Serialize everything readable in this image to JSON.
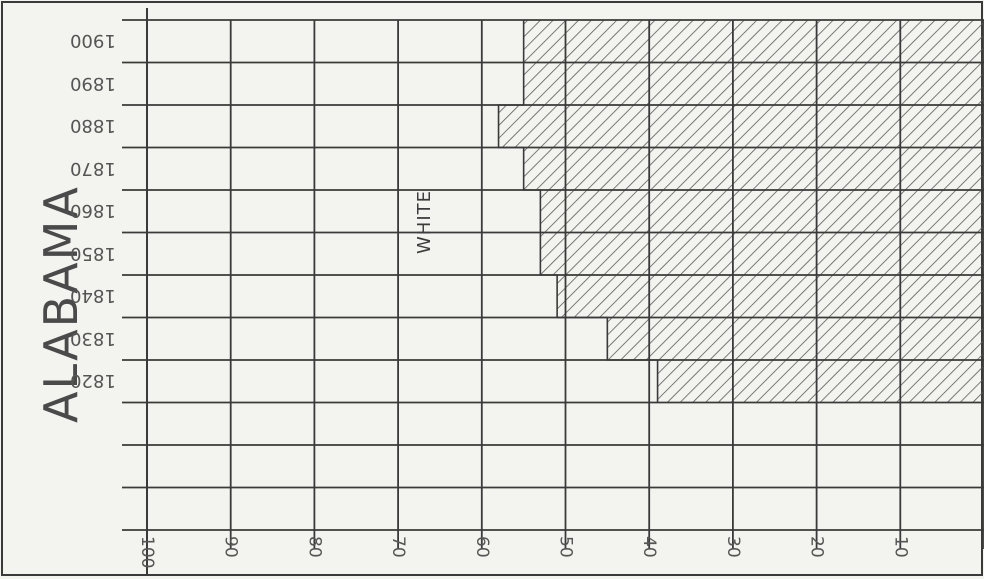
{
  "chart_data": {
    "type": "area",
    "title": "ALABAMA",
    "years": [
      "1900",
      "1890",
      "1880",
      "1870",
      "1860",
      "1850",
      "1840",
      "1830",
      "1820"
    ],
    "x_ticks": [
      "100",
      "90",
      "80",
      "70",
      "60",
      "50",
      "40",
      "30",
      "20",
      "10"
    ],
    "regions": [
      "WHITE",
      ""
    ],
    "series": [
      {
        "name": "WHITE",
        "values": [
          55,
          55,
          58,
          55,
          53,
          53,
          51,
          45,
          39
        ]
      }
    ],
    "xlim": [
      0,
      100
    ],
    "grid": true,
    "colors": {
      "line": "#3a3a3a",
      "hatch": "#5a5a5a",
      "paper": "#f3f3ef"
    }
  }
}
